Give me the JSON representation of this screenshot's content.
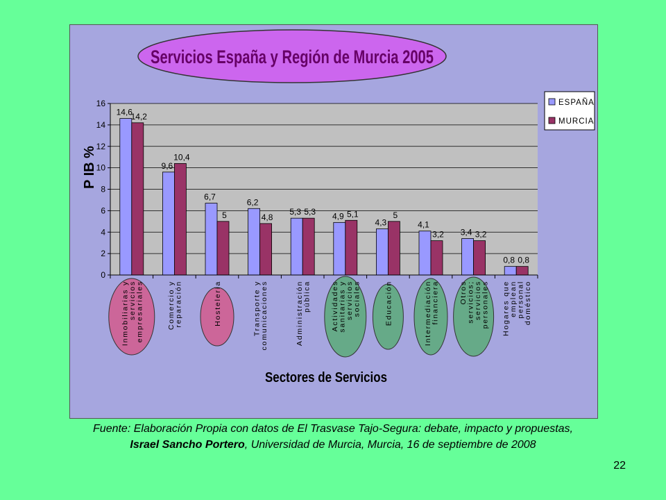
{
  "chart_data": {
    "type": "bar",
    "title": "Servicios España y Región de Murcia 2005",
    "xlabel": "Sectores de Servicios",
    "ylabel": "P IB  %",
    "ylim": [
      0,
      16
    ],
    "yticks": [
      0,
      2,
      4,
      6,
      8,
      10,
      12,
      14,
      16
    ],
    "grid": true,
    "legend_position": "top-right",
    "categories": [
      [
        "Inmobiliarias y",
        "servicios",
        "empresariales"
      ],
      [
        "Comercio y",
        "reparación"
      ],
      [
        "Hostelería"
      ],
      [
        "Transporte y",
        "comunicaciones"
      ],
      [
        "Administración",
        "pública"
      ],
      [
        "Actividades",
        "sanitarias y",
        "servicios",
        "sociales"
      ],
      [
        "Educación"
      ],
      [
        "Intermediación",
        "financiera"
      ],
      [
        "Otros",
        "servicios;",
        "servicios",
        "personales"
      ],
      [
        "Hogares que",
        "emplean",
        "personal",
        "doméstico"
      ]
    ],
    "series": [
      {
        "name": "ESPAÑA",
        "color": "#9999ff",
        "values": [
          14.6,
          9.6,
          6.7,
          6.2,
          5.3,
          4.9,
          4.3,
          4.1,
          3.4,
          0.8
        ],
        "labels": [
          "14,6",
          "9,6",
          "6,7",
          "6,2",
          "5,3",
          "4,9",
          "4,3",
          "4,1",
          "3,4",
          "0,8"
        ]
      },
      {
        "name": "MURCIA",
        "color": "#993366",
        "values": [
          14.2,
          10.4,
          5,
          4.8,
          5.3,
          5.1,
          5,
          3.2,
          3.2,
          0.8
        ],
        "labels": [
          "14,2",
          "10,4",
          "5",
          "4,8",
          "5,3",
          "5,1",
          "5",
          "3,2",
          "3,2",
          "0,8"
        ]
      }
    ],
    "highlights": [
      {
        "category_index": 0,
        "color": "#cc6699"
      },
      {
        "category_index": 2,
        "color": "#cc6699"
      },
      {
        "category_index": 5,
        "color": "#66aa88"
      },
      {
        "category_index": 6,
        "color": "#66aa88"
      },
      {
        "category_index": 7,
        "color": "#66aa88"
      },
      {
        "category_index": 8,
        "color": "#66aa88"
      }
    ],
    "colors": {
      "plot_bg": "#c0c0c0",
      "panel_bg": "#a6a6df",
      "title_fill": "#cc66ee",
      "title_text": "#660066"
    }
  },
  "caption": {
    "line1": "Fuente: Elaboración Propia con datos de El Trasvase Tajo-Segura: debate, impacto y propuestas,",
    "line2_author": "Israel Sancho Portero",
    "line2_rest": ", Universidad de Murcia, Murcia, 16 de septiembre de 2008"
  },
  "page_number": "22"
}
